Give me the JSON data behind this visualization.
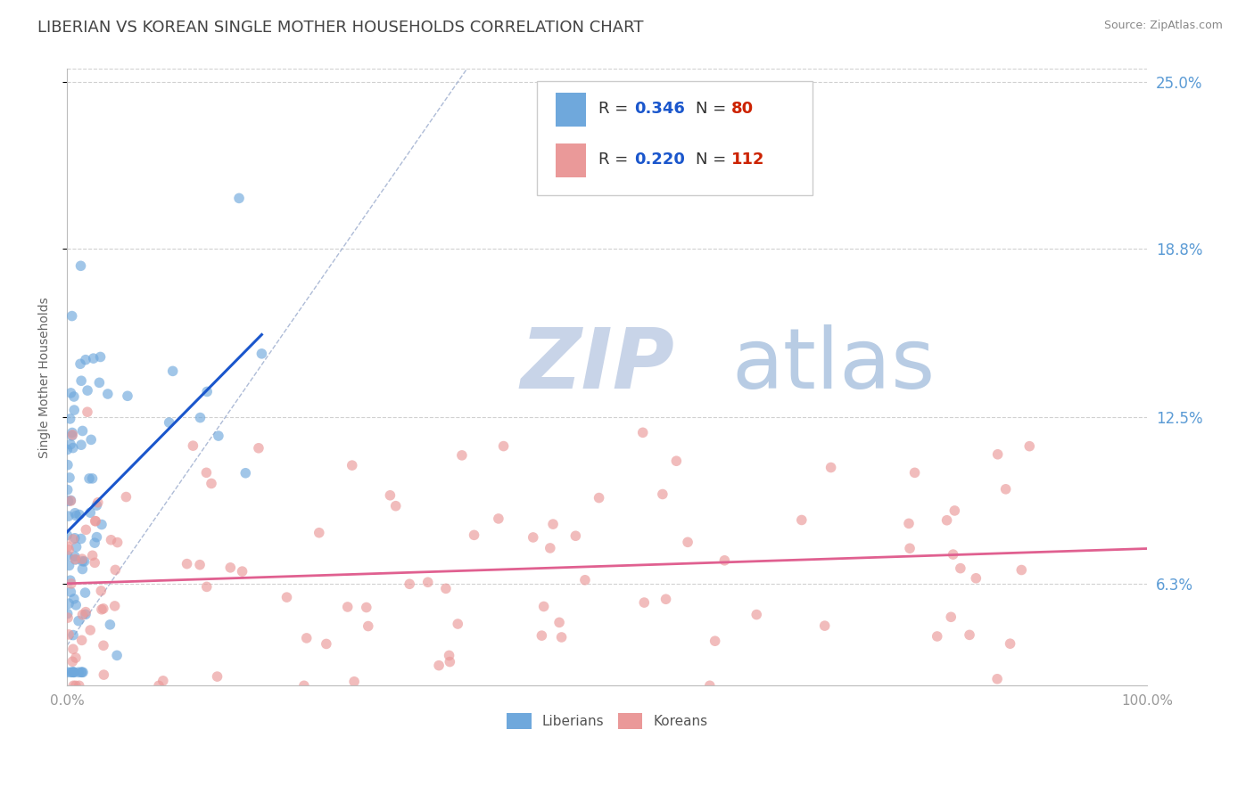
{
  "title": "LIBERIAN VS KOREAN SINGLE MOTHER HOUSEHOLDS CORRELATION CHART",
  "source": "Source: ZipAtlas.com",
  "ylabel": "Single Mother Households",
  "xlim": [
    0.0,
    1.0
  ],
  "ylim": [
    0.025,
    0.255
  ],
  "yticks": [
    0.063,
    0.125,
    0.188,
    0.25
  ],
  "ytick_labels": [
    "6.3%",
    "12.5%",
    "18.8%",
    "25.0%"
  ],
  "xtick_labels": [
    "0.0%",
    "100.0%"
  ],
  "liberian_color": "#6fa8dc",
  "korean_color": "#ea9999",
  "liberian_R": 0.346,
  "liberian_N": 80,
  "korean_R": 0.22,
  "korean_N": 112,
  "trend_liberian_color": "#1a56cc",
  "trend_korean_color": "#e06090",
  "diag_color": "#a0b0d0",
  "watermark_zip": "ZIP",
  "watermark_atlas": "atlas",
  "watermark_color_zip": "#c8d4e8",
  "watermark_color_atlas": "#b8cce4",
  "background_color": "#ffffff",
  "grid_color": "#cccccc",
  "title_color": "#444444",
  "legend_R_color": "#1a56cc",
  "legend_N_color": "#cc2200",
  "right_label_color": "#5b9bd5",
  "title_fontsize": 13,
  "axis_label_fontsize": 10,
  "tick_fontsize": 11,
  "legend_fontsize": 13
}
